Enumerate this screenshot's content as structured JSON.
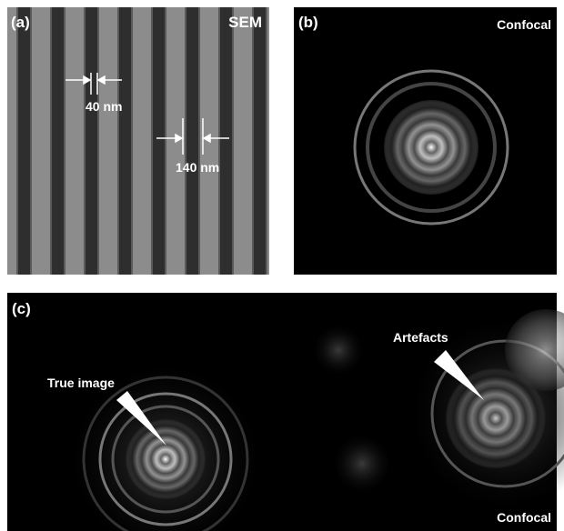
{
  "panels": {
    "a": {
      "label": "(a)",
      "title": "SEM",
      "measure_1": "40 nm",
      "measure_2": "140 nm"
    },
    "b": {
      "label": "(b)",
      "title": "Confocal"
    },
    "c": {
      "label": "(c)",
      "title": "Confocal",
      "annotation_1": "True image",
      "annotation_2": "Artefacts"
    }
  }
}
